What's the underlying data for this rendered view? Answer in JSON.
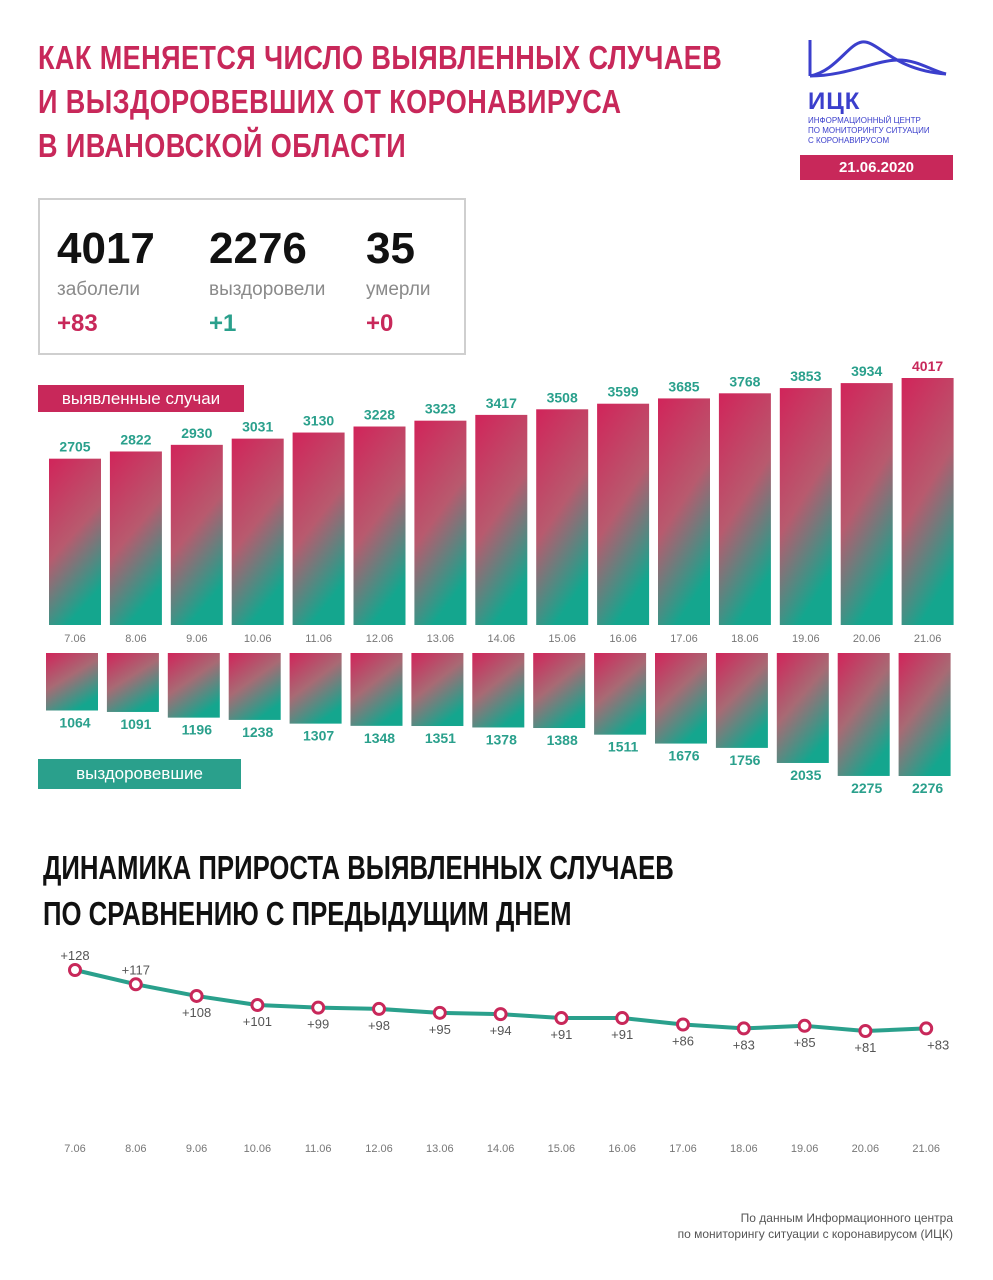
{
  "header": {
    "title_lines": [
      "КАК МЕНЯЕТСЯ ЧИСЛО ВЫЯВЛЕННЫХ СЛУЧАЕВ",
      "И ВЫЗДОРОВЕВШИХ ОТ КОРОНАВИРУСА",
      "В ИВАНОВСКОЙ ОБЛАСТИ"
    ],
    "logo_abbr": "ИЦК",
    "logo_sub": [
      "ИНФОРМАЦИОННЫЙ ЦЕНТР",
      "ПО МОНИТОРИНГУ СИТУАЦИИ",
      "С КОРОНАВИРУСОМ"
    ],
    "date": "21.06.2020"
  },
  "stats": [
    {
      "value": "4017",
      "label": "заболели",
      "delta": "+83"
    },
    {
      "value": "2276",
      "label": "выздоровели",
      "delta": "+1"
    },
    {
      "value": "35",
      "label": "умерли",
      "delta": "+0"
    }
  ],
  "labels": {
    "detected": "выявленные случаи",
    "recovered": "выздоровевшие"
  },
  "section2": {
    "title_lines": [
      "ДИНАМИКА ПРИРОСТА ВЫЯВЛЕННЫХ СЛУЧАЕВ",
      "ПО СРАВНЕНИЮ С ПРЕДЫДУЩИМ ДНЕМ"
    ]
  },
  "footnote": [
    "По данным Информационного центра",
    "по мониторингу ситуации с коронавирусом (ИЦК)"
  ],
  "colors": {
    "accent": "#c8285a",
    "teal": "#2aa08c",
    "logo": "#3b3fcc"
  },
  "chart_data": [
    {
      "type": "bar",
      "categories": [
        "7.06",
        "8.06",
        "9.06",
        "10.06",
        "11.06",
        "12.06",
        "13.06",
        "14.06",
        "15.06",
        "16.06",
        "17.06",
        "18.06",
        "19.06",
        "20.06",
        "21.06"
      ],
      "series": [
        {
          "name": "выявленные случаи",
          "values": [
            2705,
            2822,
            2930,
            3031,
            3130,
            3228,
            3323,
            3417,
            3508,
            3599,
            3685,
            3768,
            3853,
            3934,
            4017
          ]
        },
        {
          "name": "выздоровевшие",
          "values": [
            1064,
            1091,
            1196,
            1238,
            1307,
            1348,
            1351,
            1378,
            1388,
            1511,
            1676,
            1756,
            2035,
            2275,
            2276
          ]
        }
      ]
    },
    {
      "type": "line",
      "categories": [
        "7.06",
        "8.06",
        "9.06",
        "10.06",
        "11.06",
        "12.06",
        "13.06",
        "14.06",
        "15.06",
        "16.06",
        "17.06",
        "18.06",
        "19.06",
        "20.06",
        "21.06"
      ],
      "values": [
        128,
        117,
        108,
        101,
        99,
        98,
        95,
        94,
        91,
        91,
        86,
        83,
        85,
        81,
        83
      ],
      "value_labels": [
        "+128",
        "+117",
        "+108",
        "+101",
        "+99",
        "+98",
        "+95",
        "+94",
        "+91",
        "+91",
        "+86",
        "+83",
        "+85",
        "+81",
        "+83"
      ]
    }
  ]
}
